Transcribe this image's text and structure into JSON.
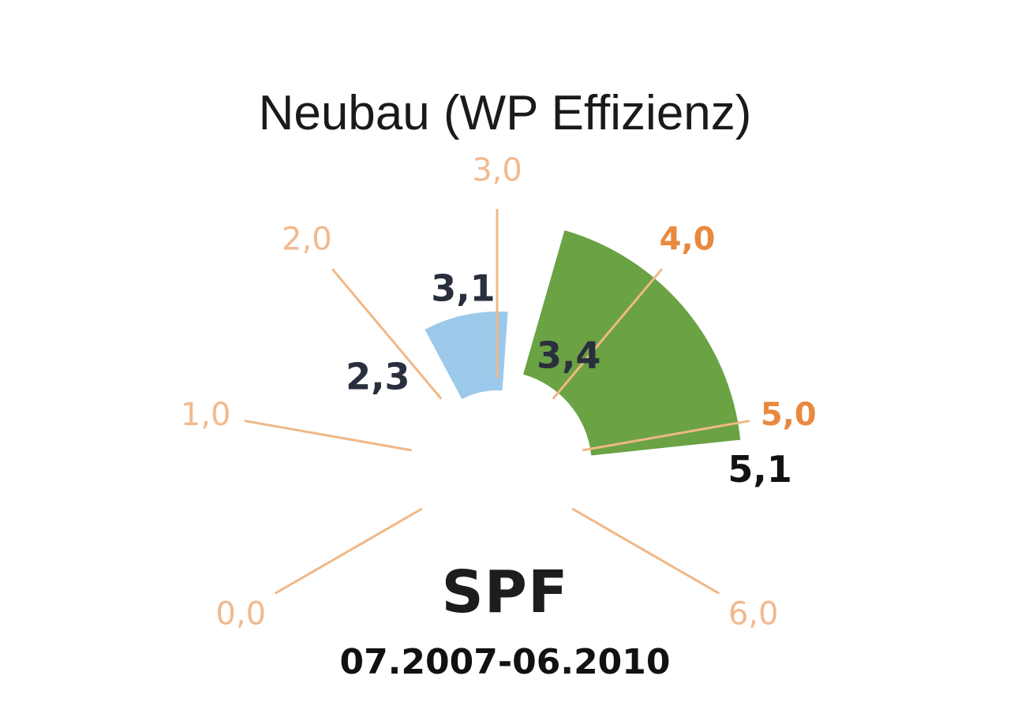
{
  "title": "Neubau (WP Effizienz)",
  "label": "SPF",
  "period": "07.2007-06.2010",
  "chart_data": {
    "type": "gauge",
    "axis": {
      "min": 0,
      "max": 6
    },
    "ticks": [
      {
        "value": 0,
        "label": "0,0",
        "emphasis": false
      },
      {
        "value": 1,
        "label": "1,0",
        "emphasis": false
      },
      {
        "value": 2,
        "label": "2,0",
        "emphasis": false
      },
      {
        "value": 3,
        "label": "3,0",
        "emphasis": false
      },
      {
        "value": 4,
        "label": "4,0",
        "emphasis": true
      },
      {
        "value": 5,
        "label": "5,0",
        "emphasis": true
      },
      {
        "value": 6,
        "label": "6,0",
        "emphasis": false
      }
    ],
    "ranges": [
      {
        "from": 2.3,
        "to": 3.1,
        "color": "#9cc9ea",
        "from_label": "2,3",
        "to_label": "3,1"
      },
      {
        "from": 3.4,
        "to": 5.1,
        "color": "#6aa244",
        "from_label": "3,4",
        "to_label": "5,1"
      }
    ],
    "colors": {
      "tick_line": "#f0b887",
      "value_label": "#2a2f3e",
      "value_label_dark": "#111111"
    }
  }
}
